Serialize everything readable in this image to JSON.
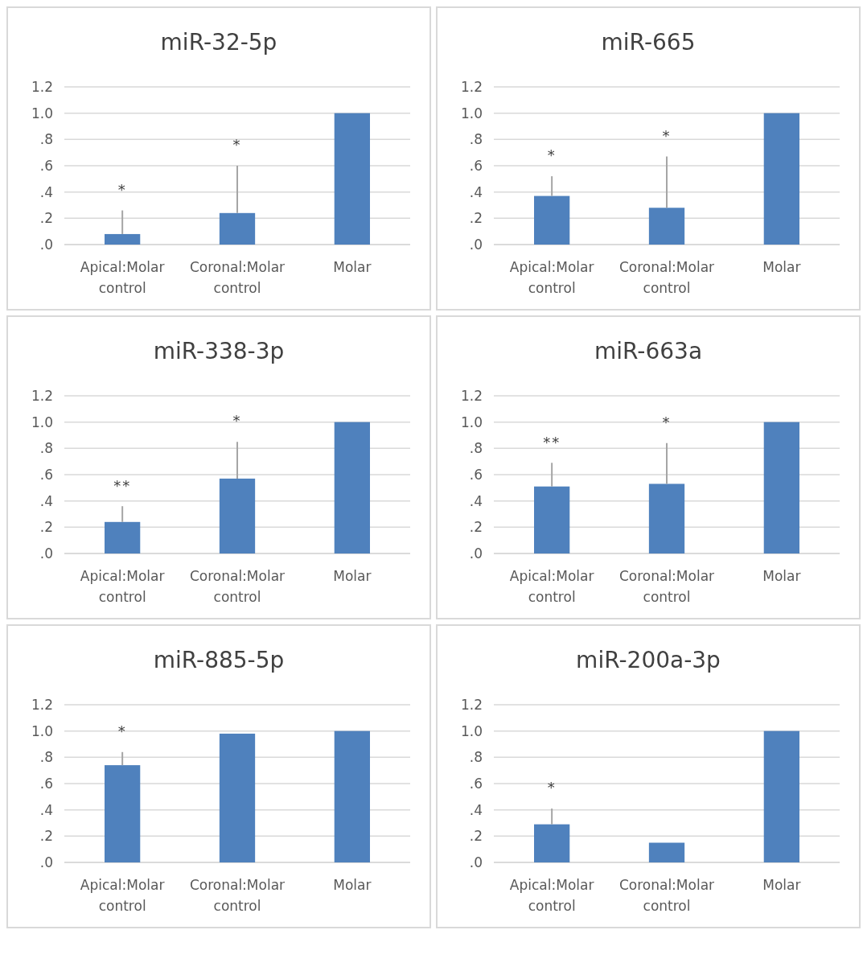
{
  "chart_data": [
    {
      "type": "bar",
      "title": "miR-32-5p",
      "categories": [
        "Apical:Molar control",
        "Coronal:Molar control",
        "Molar"
      ],
      "values": [
        0.08,
        0.24,
        1.0
      ],
      "errors": [
        [
          0.08,
          0.26
        ],
        [
          0.24,
          0.6
        ],
        null
      ],
      "color": "#4f81bd",
      "ylim": [
        0,
        1.2
      ],
      "yticks": [
        {
          "value": 0,
          "label": ".0"
        },
        {
          "value": 0.2,
          "label": ".2"
        },
        {
          "value": 0.4,
          "label": ".4"
        },
        {
          "value": 0.6,
          "label": ".6"
        },
        {
          "value": 0.8,
          "label": ".8"
        },
        {
          "value": 1,
          "label": "1.0"
        },
        {
          "value": 1.2,
          "label": "1.2"
        }
      ],
      "grid": "y",
      "annotations": [
        "*",
        "*"
      ]
    },
    {
      "type": "bar",
      "title": "miR-665",
      "categories": [
        "Apical:Molar control",
        "Coronal:Molar control",
        "Molar"
      ],
      "values": [
        0.37,
        0.28,
        1.0
      ],
      "errors": [
        [
          0.37,
          0.52
        ],
        [
          0.28,
          0.67
        ],
        null
      ],
      "color": "#4f81bd",
      "ylim": [
        0,
        1.2
      ],
      "yticks": [
        {
          "value": 0,
          "label": ".0"
        },
        {
          "value": 0.2,
          "label": ".2"
        },
        {
          "value": 0.4,
          "label": ".4"
        },
        {
          "value": 0.6,
          "label": ".6"
        },
        {
          "value": 0.8,
          "label": ".8"
        },
        {
          "value": 1,
          "label": "1.0"
        },
        {
          "value": 1.2,
          "label": "1.2"
        }
      ],
      "grid": "y",
      "annotations": [
        "*",
        "*"
      ]
    },
    {
      "type": "bar",
      "title": "miR-338-3p",
      "categories": [
        "Apical:Molar control",
        "Coronal:Molar control",
        "Molar"
      ],
      "values": [
        0.24,
        0.57,
        1.0
      ],
      "errors": [
        [
          0.24,
          0.36
        ],
        [
          0.57,
          0.85
        ],
        null
      ],
      "color": "#4f81bd",
      "ylim": [
        0,
        1.2
      ],
      "yticks": [
        {
          "value": 0,
          "label": ".0"
        },
        {
          "value": 0.2,
          "label": ".2"
        },
        {
          "value": 0.4,
          "label": ".4"
        },
        {
          "value": 0.6,
          "label": ".6"
        },
        {
          "value": 0.8,
          "label": ".8"
        },
        {
          "value": 1,
          "label": "1.0"
        },
        {
          "value": 1.2,
          "label": "1.2"
        }
      ],
      "grid": "y",
      "annotations": [
        "**",
        "*"
      ]
    },
    {
      "type": "bar",
      "title": "miR-663a",
      "categories": [
        "Apical:Molar control",
        "Coronal:Molar control",
        "Molar"
      ],
      "values": [
        0.51,
        0.53,
        1.0
      ],
      "errors": [
        [
          0.51,
          0.69
        ],
        [
          0.53,
          0.84
        ],
        null
      ],
      "color": "#4f81bd",
      "ylim": [
        0,
        1.2
      ],
      "yticks": [
        {
          "value": 0,
          "label": ".0"
        },
        {
          "value": 0.2,
          "label": ".2"
        },
        {
          "value": 0.4,
          "label": ".4"
        },
        {
          "value": 0.6,
          "label": ".6"
        },
        {
          "value": 0.8,
          "label": ".8"
        },
        {
          "value": 1,
          "label": "1.0"
        },
        {
          "value": 1.2,
          "label": "1.2"
        }
      ],
      "grid": "y",
      "annotations": [
        "**",
        "*"
      ]
    },
    {
      "type": "bar",
      "title": "miR-885-5p",
      "categories": [
        "Apical:Molar control",
        "Coronal:Molar control",
        "Molar"
      ],
      "values": [
        0.74,
        0.98,
        1.0
      ],
      "errors": [
        [
          0.74,
          0.84
        ],
        null,
        null
      ],
      "color": "#4f81bd",
      "ylim": [
        0,
        1.2
      ],
      "yticks": [
        {
          "value": 0,
          "label": ".0"
        },
        {
          "value": 0.2,
          "label": ".2"
        },
        {
          "value": 0.4,
          "label": ".4"
        },
        {
          "value": 0.6,
          "label": ".6"
        },
        {
          "value": 0.8,
          "label": ".8"
        },
        {
          "value": 1,
          "label": "1.0"
        },
        {
          "value": 1.2,
          "label": "1.2"
        }
      ],
      "grid": "y",
      "annotations": [
        "*"
      ]
    },
    {
      "type": "bar",
      "title": "miR-200a-3p",
      "categories": [
        "Apical:Molar control",
        "Coronal:Molar control",
        "Molar"
      ],
      "values": [
        0.29,
        0.15,
        1.0
      ],
      "errors": [
        [
          0.29,
          0.41
        ],
        null,
        null
      ],
      "color": "#4f81bd",
      "ylim": [
        0,
        1.2
      ],
      "yticks": [
        {
          "value": 0,
          "label": ".0"
        },
        {
          "value": 0.2,
          "label": ".2"
        },
        {
          "value": 0.4,
          "label": ".4"
        },
        {
          "value": 0.6,
          "label": ".6"
        },
        {
          "value": 0.8,
          "label": ".8"
        },
        {
          "value": 1,
          "label": "1.0"
        },
        {
          "value": 1.2,
          "label": "1.2"
        }
      ],
      "grid": "y",
      "annotations": [
        "*"
      ]
    }
  ]
}
